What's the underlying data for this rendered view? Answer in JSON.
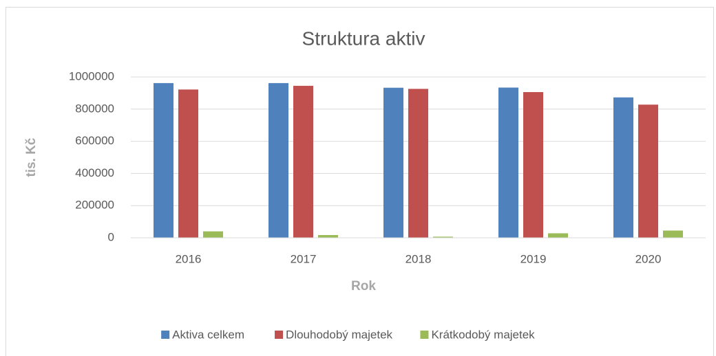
{
  "chart_data": {
    "type": "bar",
    "title": "Struktura aktiv",
    "x_label": "Rok",
    "y_label": "tis. Kč",
    "categories": [
      "2016",
      "2017",
      "2018",
      "2019",
      "2020"
    ],
    "series": [
      {
        "name": "Aktiva celkem",
        "color": "#4f81bd",
        "values": [
          962000,
          962000,
          933000,
          934000,
          873000
        ]
      },
      {
        "name": "Dlouhodobý majetek",
        "color": "#c0504d",
        "values": [
          922000,
          945000,
          926000,
          906000,
          828000
        ]
      },
      {
        "name": "Krátkodobý majetek",
        "color": "#9bbb59",
        "values": [
          40000,
          17000,
          7000,
          28000,
          45000
        ]
      }
    ],
    "ylim": [
      0,
      1000000
    ],
    "yticks": [
      0,
      200000,
      400000,
      600000,
      800000,
      1000000
    ],
    "grid": true,
    "legend": "bottom"
  }
}
